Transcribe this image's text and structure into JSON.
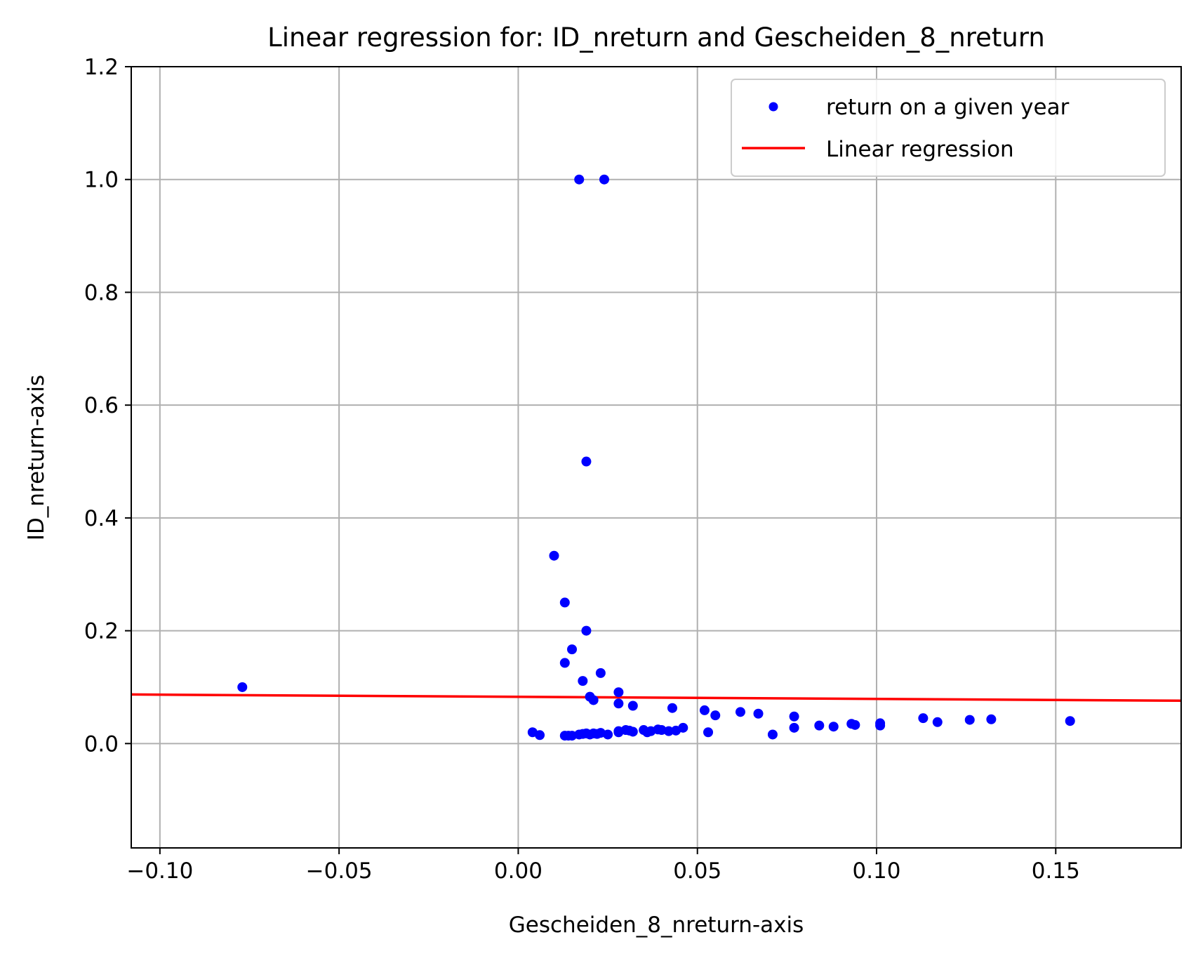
{
  "chart_data": {
    "type": "scatter",
    "title": "Linear regression for: ID_nreturn and Gescheiden_8_nreturn",
    "xlabel": "Gescheiden_8_nreturn-axis",
    "ylabel": "ID_nreturn-axis",
    "xlim": [
      -0.108,
      0.185
    ],
    "ylim": [
      -0.185,
      1.2
    ],
    "xticks": [
      -0.1,
      -0.05,
      0.0,
      0.05,
      0.1,
      0.15
    ],
    "xtick_labels": [
      "−0.10",
      "−0.05",
      "0.00",
      "0.05",
      "0.10",
      "0.15"
    ],
    "yticks": [
      0.0,
      0.2,
      0.4,
      0.6,
      0.8,
      1.0,
      1.2
    ],
    "ytick_labels": [
      "0.0",
      "0.2",
      "0.4",
      "0.6",
      "0.8",
      "1.0",
      "1.2"
    ],
    "grid": true,
    "legend": {
      "placement": "top-right",
      "entries": [
        "return on a given year",
        "Linear regression"
      ]
    },
    "colors": {
      "scatter": "#0000ff",
      "regression": "#ff0000",
      "grid": "#b0b0b0"
    },
    "series": [
      {
        "name": "return on a given year",
        "kind": "scatter",
        "x": [
          -0.077,
          0.017,
          0.024,
          0.019,
          0.01,
          0.013,
          0.019,
          0.015,
          0.013,
          0.018,
          0.023,
          0.02,
          0.021,
          0.028,
          0.028,
          0.032,
          0.043,
          0.052,
          0.055,
          0.062,
          0.067,
          0.077,
          0.004,
          0.006,
          0.013,
          0.014,
          0.015,
          0.017,
          0.018,
          0.019,
          0.02,
          0.021,
          0.022,
          0.023,
          0.025,
          0.028,
          0.028,
          0.03,
          0.031,
          0.032,
          0.035,
          0.036,
          0.037,
          0.039,
          0.04,
          0.042,
          0.044,
          0.046,
          0.053,
          0.071,
          0.077,
          0.084,
          0.088,
          0.093,
          0.094,
          0.101,
          0.101,
          0.113,
          0.117,
          0.126,
          0.132,
          0.154
        ],
        "y": [
          0.1,
          1.0,
          1.0,
          0.5,
          0.333,
          0.25,
          0.2,
          0.167,
          0.143,
          0.111,
          0.125,
          0.083,
          0.077,
          0.091,
          0.071,
          0.067,
          0.063,
          0.059,
          0.05,
          0.056,
          0.053,
          0.048,
          0.02,
          0.015,
          0.014,
          0.014,
          0.014,
          0.016,
          0.017,
          0.018,
          0.016,
          0.018,
          0.017,
          0.019,
          0.016,
          0.022,
          0.02,
          0.024,
          0.023,
          0.021,
          0.024,
          0.02,
          0.022,
          0.025,
          0.024,
          0.022,
          0.023,
          0.028,
          0.02,
          0.016,
          0.028,
          0.032,
          0.03,
          0.035,
          0.033,
          0.032,
          0.036,
          0.045,
          0.038,
          0.042,
          0.043,
          0.04
        ]
      },
      {
        "name": "Linear regression",
        "kind": "line",
        "x": [
          -0.108,
          0.185
        ],
        "y": [
          0.087,
          0.076
        ]
      }
    ]
  }
}
